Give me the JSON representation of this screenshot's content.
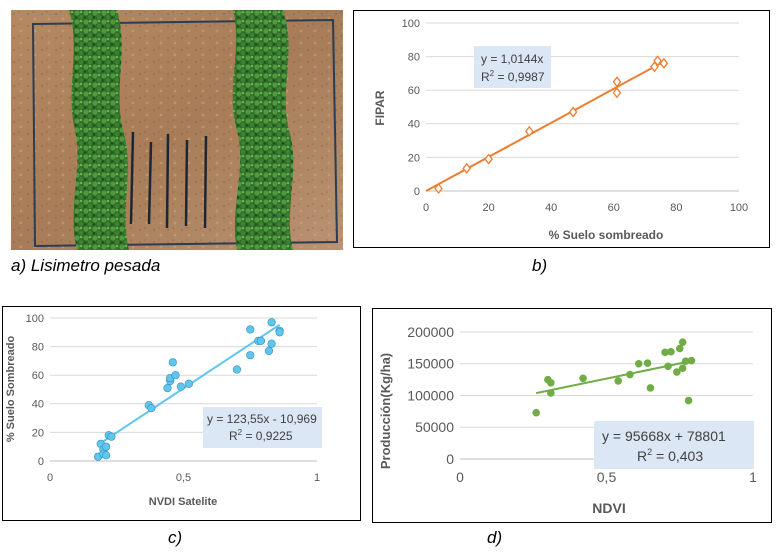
{
  "captions": {
    "a": "a) Lisimetro pesada",
    "b": "b)",
    "c": "c)",
    "d": "d)"
  },
  "photo": {
    "description_icon": "lysimeter-field-photo-icon"
  },
  "chart_data": [
    {
      "id": "b",
      "type": "scatter",
      "title": "",
      "xlabel": "% Suelo sombreado",
      "ylabel": "FIPAR",
      "xlim": [
        0,
        100
      ],
      "ylim": [
        0,
        100
      ],
      "xticks": [
        "0",
        "20",
        "40",
        "60",
        "80",
        "100"
      ],
      "yticks": [
        "0",
        "20",
        "40",
        "60",
        "80",
        "100"
      ],
      "marker": "diamond",
      "color": "#ed7d31",
      "grid": true,
      "points": [
        [
          4,
          1.5
        ],
        [
          13,
          13.5
        ],
        [
          20,
          19
        ],
        [
          33,
          35.5
        ],
        [
          47,
          47
        ],
        [
          61,
          58.5
        ],
        [
          61,
          65
        ],
        [
          73,
          74
        ],
        [
          74,
          77.5
        ],
        [
          76,
          76
        ]
      ],
      "trendline": {
        "slope": 1.0144,
        "intercept": 0,
        "x_range": [
          0,
          76
        ]
      },
      "annotation": {
        "line1": "y = 1,0144x",
        "r2_label": "R",
        "r2_value": " = 0,9987"
      }
    },
    {
      "id": "c",
      "type": "scatter",
      "title": "",
      "xlabel": "NVDI Satelite",
      "ylabel": "% Suelo Sombreado",
      "xlim": [
        0,
        1
      ],
      "ylim": [
        0,
        100
      ],
      "xticks": [
        "0",
        "0,5",
        "1"
      ],
      "yticks": [
        "0",
        "20",
        "40",
        "60",
        "80",
        "100"
      ],
      "marker": "circle",
      "color": "#5dc7f0",
      "grid": true,
      "points": [
        [
          0.18,
          3
        ],
        [
          0.19,
          12
        ],
        [
          0.2,
          8
        ],
        [
          0.2,
          5
        ],
        [
          0.21,
          4
        ],
        [
          0.21,
          10
        ],
        [
          0.22,
          18
        ],
        [
          0.23,
          17
        ],
        [
          0.37,
          39
        ],
        [
          0.38,
          37
        ],
        [
          0.44,
          51
        ],
        [
          0.45,
          56
        ],
        [
          0.45,
          58
        ],
        [
          0.46,
          69
        ],
        [
          0.47,
          60
        ],
        [
          0.49,
          52
        ],
        [
          0.52,
          54
        ],
        [
          0.7,
          64
        ],
        [
          0.75,
          74
        ],
        [
          0.75,
          92
        ],
        [
          0.78,
          84
        ],
        [
          0.79,
          84
        ],
        [
          0.82,
          77
        ],
        [
          0.83,
          82
        ],
        [
          0.83,
          97
        ],
        [
          0.86,
          91
        ],
        [
          0.86,
          90
        ]
      ],
      "trendline": {
        "slope": 123.55,
        "intercept": -10.969,
        "x_range": [
          0.18,
          0.86
        ]
      },
      "annotation": {
        "line1": "y = 123,55x - 10,969",
        "r2_label": "R",
        "r2_value": " = 0,9225"
      }
    },
    {
      "id": "d",
      "type": "scatter",
      "title": "",
      "xlabel": "NDVI",
      "ylabel": "Producción(Kg/ha)",
      "xlim": [
        0,
        1
      ],
      "ylim": [
        0,
        200000
      ],
      "xticks": [
        "0",
        "0,5",
        "1"
      ],
      "yticks": [
        "0",
        "50000",
        "100000",
        "150000",
        "200000"
      ],
      "marker": "circle",
      "color": "#70ad47",
      "grid": true,
      "points": [
        [
          0.26,
          73000
        ],
        [
          0.3,
          125000
        ],
        [
          0.31,
          104000
        ],
        [
          0.31,
          120000
        ],
        [
          0.42,
          127000
        ],
        [
          0.54,
          123000
        ],
        [
          0.58,
          133000
        ],
        [
          0.61,
          150000
        ],
        [
          0.64,
          151000
        ],
        [
          0.65,
          112000
        ],
        [
          0.7,
          168000
        ],
        [
          0.71,
          146000
        ],
        [
          0.72,
          169000
        ],
        [
          0.74,
          137000
        ],
        [
          0.75,
          174000
        ],
        [
          0.76,
          184000
        ],
        [
          0.76,
          143000
        ],
        [
          0.77,
          154000
        ],
        [
          0.78,
          92000
        ],
        [
          0.79,
          155000
        ]
      ],
      "trendline": {
        "slope": 95668,
        "intercept": 78801,
        "x_range": [
          0.26,
          0.79
        ]
      },
      "annotation": {
        "line1": "y = 95668x + 78801",
        "r2_label": "R",
        "r2_value": " = 0,403"
      }
    }
  ]
}
